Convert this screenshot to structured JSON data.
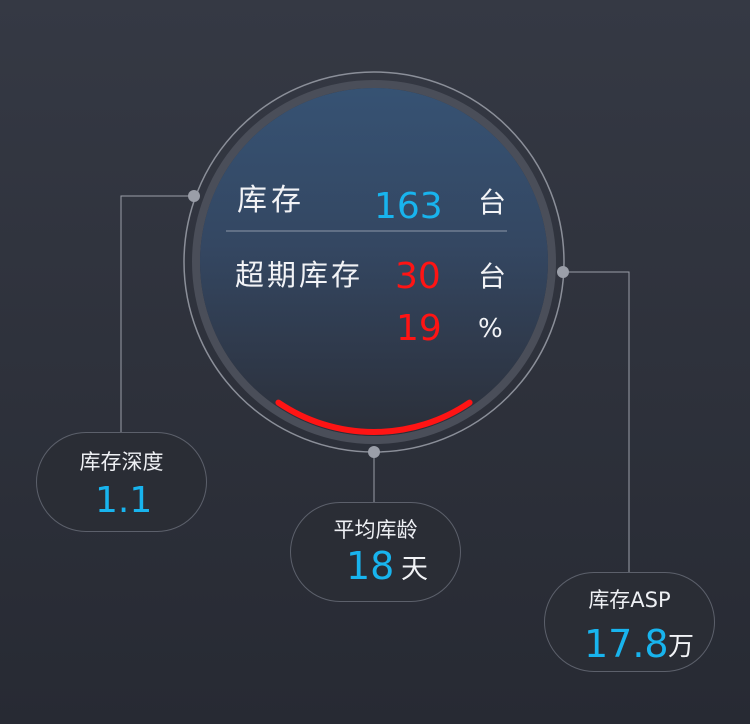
{
  "center": {
    "inventory_label": "库存",
    "inventory_value": "163",
    "inventory_unit": "台",
    "overdue_label": "超期库存",
    "overdue_value": "30",
    "overdue_unit": "台",
    "overdue_percent_value": "19",
    "overdue_percent_unit": "%",
    "gauge_fraction": 0.19
  },
  "stats": {
    "depth": {
      "label": "库存深度",
      "value": "1.1"
    },
    "age": {
      "label": "平均库龄",
      "value": "18",
      "unit": "天"
    },
    "asp": {
      "label": "库存ASP",
      "value": "17.8",
      "unit": "万"
    }
  },
  "colors": {
    "accent_blue": "#18b4ee",
    "alert_red": "#ff1414",
    "background": "#2f323b"
  }
}
